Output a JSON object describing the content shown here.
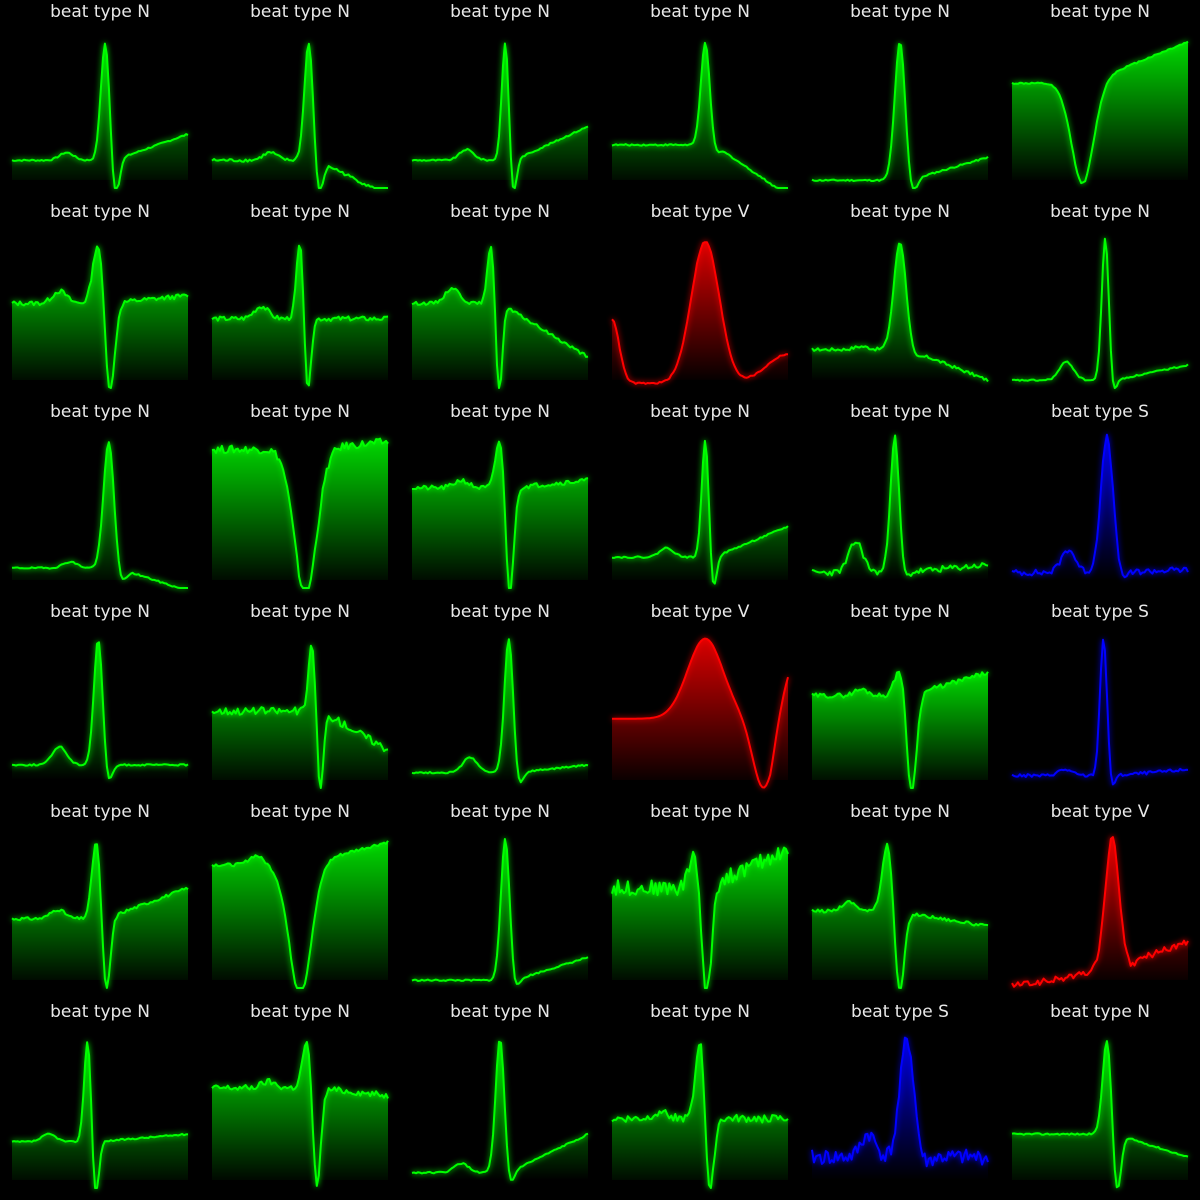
{
  "colors": {
    "N": "#00ff00",
    "V": "#ff0000",
    "S": "#0000ff",
    "background": "#000000",
    "title": "#e8e8e8"
  },
  "title_prefix": "beat type",
  "chart_data": [
    {
      "type": "line",
      "title": "beat type N",
      "beat": "N",
      "shape": {
        "baseline": 0.18,
        "peak": 0.95,
        "peak_pos": 0.53,
        "peak_width": 0.025,
        "s_depth": 0.22,
        "end": 0.35,
        "p_wave": 0.05,
        "noise": 0.005,
        "filled": true
      }
    },
    {
      "type": "line",
      "title": "beat type N",
      "beat": "N",
      "shape": {
        "baseline": 0.18,
        "peak": 0.95,
        "peak_pos": 0.55,
        "peak_width": 0.025,
        "s_depth": 0.2,
        "end": -0.05,
        "p_wave": 0.05,
        "noise": 0.01,
        "filled": true
      }
    },
    {
      "type": "line",
      "title": "beat type N",
      "beat": "N",
      "shape": {
        "baseline": 0.18,
        "peak": 0.95,
        "peak_pos": 0.53,
        "peak_width": 0.02,
        "s_depth": 0.2,
        "end": 0.4,
        "p_wave": 0.07,
        "noise": 0.005,
        "filled": true
      }
    },
    {
      "type": "line",
      "title": "beat type N",
      "beat": "N",
      "shape": {
        "baseline": 0.28,
        "peak": 0.95,
        "peak_pos": 0.53,
        "peak_width": 0.025,
        "s_depth": 0.0,
        "end": -0.05,
        "p_wave": 0.0,
        "noise": 0.005,
        "filled": true
      }
    },
    {
      "type": "line",
      "title": "beat type N",
      "beat": "N",
      "shape": {
        "baseline": 0.05,
        "peak": 0.95,
        "peak_pos": 0.5,
        "peak_width": 0.03,
        "s_depth": 0.06,
        "end": 0.2,
        "p_wave": 0.0,
        "noise": 0.005,
        "filled": true
      }
    },
    {
      "type": "line",
      "title": "beat type N",
      "beat": "N",
      "shape": {
        "baseline": 0.68,
        "peak": 0.74,
        "peak_pos": 0.37,
        "peak_width": 0.04,
        "s_depth": 0.65,
        "end": 0.95,
        "p_wave": 0.0,
        "noise": 0.005,
        "filled": true,
        "inverted": true
      }
    },
    {
      "type": "line",
      "title": "beat type N",
      "beat": "N",
      "shape": {
        "baseline": 0.55,
        "peak": 0.95,
        "peak_pos": 0.49,
        "peak_width": 0.03,
        "s_depth": 0.55,
        "end": 0.6,
        "p_wave": 0.08,
        "noise": 0.015,
        "filled": true
      }
    },
    {
      "type": "line",
      "title": "beat type N",
      "beat": "N",
      "shape": {
        "baseline": 0.45,
        "peak": 0.95,
        "peak_pos": 0.5,
        "peak_width": 0.02,
        "s_depth": 0.45,
        "end": 0.45,
        "p_wave": 0.08,
        "noise": 0.015,
        "filled": true
      }
    },
    {
      "type": "line",
      "title": "beat type N",
      "beat": "N",
      "shape": {
        "baseline": 0.55,
        "peak": 0.95,
        "peak_pos": 0.45,
        "peak_width": 0.02,
        "s_depth": 0.55,
        "end": 0.2,
        "p_wave": 0.1,
        "noise": 0.01,
        "filled": true
      }
    },
    {
      "type": "line",
      "title": "beat type V",
      "beat": "V",
      "shape": {
        "baseline": 0.03,
        "peak": 0.95,
        "peak_pos": 0.53,
        "peak_width": 0.08,
        "s_depth": 0.0,
        "end": 0.22,
        "p_wave": 0.0,
        "noise": 0.005,
        "filled": true,
        "start": 0.45,
        "wide": true
      }
    },
    {
      "type": "line",
      "title": "beat type N",
      "beat": "N",
      "shape": {
        "baseline": 0.25,
        "peak": 0.95,
        "peak_pos": 0.5,
        "peak_width": 0.035,
        "s_depth": 0.0,
        "end": 0.05,
        "p_wave": 0.02,
        "noise": 0.01,
        "filled": true
      }
    },
    {
      "type": "line",
      "title": "beat type N",
      "beat": "N",
      "shape": {
        "baseline": 0.05,
        "peak": 0.98,
        "peak_pos": 0.53,
        "peak_width": 0.02,
        "s_depth": 0.04,
        "end": 0.15,
        "p_wave": 0.12,
        "noise": 0.005,
        "filled": false
      }
    },
    {
      "type": "line",
      "title": "beat type N",
      "beat": "N",
      "shape": {
        "baseline": 0.13,
        "peak": 0.95,
        "peak_pos": 0.55,
        "peak_width": 0.03,
        "s_depth": 0.05,
        "end": -0.02,
        "p_wave": 0.04,
        "noise": 0.005,
        "filled": true
      }
    },
    {
      "type": "line",
      "title": "beat type N",
      "beat": "N",
      "shape": {
        "baseline": 0.9,
        "peak": 0.95,
        "peak_pos": 0.5,
        "peak_width": 0.04,
        "s_depth": 0.95,
        "end": 0.95,
        "p_wave": 0.0,
        "noise": 0.025,
        "filled": true,
        "inverted": true
      }
    },
    {
      "type": "line",
      "title": "beat type N",
      "beat": "N",
      "shape": {
        "baseline": 0.65,
        "peak": 0.98,
        "peak_pos": 0.5,
        "peak_width": 0.025,
        "s_depth": 0.65,
        "end": 0.7,
        "p_wave": 0.05,
        "noise": 0.015,
        "filled": true
      }
    },
    {
      "type": "line",
      "title": "beat type N",
      "beat": "N",
      "shape": {
        "baseline": 0.2,
        "peak": 0.97,
        "peak_pos": 0.53,
        "peak_width": 0.02,
        "s_depth": 0.18,
        "end": 0.4,
        "p_wave": 0.06,
        "noise": 0.005,
        "filled": true
      }
    },
    {
      "type": "line",
      "title": "beat type N",
      "beat": "N",
      "shape": {
        "baseline": 0.1,
        "peak": 0.98,
        "peak_pos": 0.47,
        "peak_width": 0.025,
        "s_depth": 0.0,
        "end": 0.15,
        "p_wave": 0.2,
        "noise": 0.02,
        "filled": true
      }
    },
    {
      "type": "line",
      "title": "beat type S",
      "beat": "S",
      "shape": {
        "baseline": 0.1,
        "peak": 0.98,
        "peak_pos": 0.54,
        "peak_width": 0.035,
        "s_depth": 0.0,
        "end": 0.12,
        "p_wave": 0.15,
        "noise": 0.02,
        "filled": true
      }
    },
    {
      "type": "line",
      "title": "beat type N",
      "beat": "N",
      "shape": {
        "baseline": 0.15,
        "peak": 0.97,
        "peak_pos": 0.49,
        "peak_width": 0.025,
        "s_depth": 0.08,
        "end": 0.15,
        "p_wave": 0.12,
        "noise": 0.005,
        "filled": true
      }
    },
    {
      "type": "line",
      "title": "beat type N",
      "beat": "N",
      "shape": {
        "baseline": 0.5,
        "peak": 0.95,
        "peak_pos": 0.57,
        "peak_width": 0.02,
        "s_depth": 0.5,
        "end": 0.25,
        "p_wave": 0.0,
        "noise": 0.025,
        "filled": true
      }
    },
    {
      "type": "line",
      "title": "beat type N",
      "beat": "N",
      "shape": {
        "baseline": 0.1,
        "peak": 0.97,
        "peak_pos": 0.55,
        "peak_width": 0.025,
        "s_depth": 0.05,
        "end": 0.15,
        "p_wave": 0.1,
        "noise": 0.005,
        "filled": true
      }
    },
    {
      "type": "line",
      "title": "beat type V",
      "beat": "V",
      "shape": {
        "baseline": 0.45,
        "peak": 0.97,
        "peak_pos": 0.53,
        "peak_width": 0.1,
        "s_depth": 0.0,
        "end": 0.45,
        "p_wave": 0.0,
        "noise": 0.0,
        "filled": true,
        "wide": true
      }
    },
    {
      "type": "line",
      "title": "beat type N",
      "beat": "N",
      "shape": {
        "baseline": 0.6,
        "peak": 0.78,
        "peak_pos": 0.5,
        "peak_width": 0.03,
        "s_depth": 0.6,
        "end": 0.75,
        "p_wave": 0.04,
        "noise": 0.015,
        "filled": true
      }
    },
    {
      "type": "line",
      "title": "beat type S",
      "beat": "S",
      "shape": {
        "baseline": 0.08,
        "peak": 0.98,
        "peak_pos": 0.52,
        "peak_width": 0.02,
        "s_depth": 0.04,
        "end": 0.12,
        "p_wave": 0.04,
        "noise": 0.01,
        "filled": false
      }
    },
    {
      "type": "line",
      "title": "beat type N",
      "beat": "N",
      "shape": {
        "baseline": 0.45,
        "peak": 0.97,
        "peak_pos": 0.48,
        "peak_width": 0.025,
        "s_depth": 0.45,
        "end": 0.65,
        "p_wave": 0.06,
        "noise": 0.01,
        "filled": true
      }
    },
    {
      "type": "line",
      "title": "beat type N",
      "beat": "N",
      "shape": {
        "baseline": 0.8,
        "peak": 0.9,
        "peak_pos": 0.47,
        "peak_width": 0.04,
        "s_depth": 0.85,
        "end": 0.95,
        "p_wave": 0.06,
        "noise": 0.01,
        "filled": true,
        "inverted": true
      }
    },
    {
      "type": "line",
      "title": "beat type N",
      "beat": "N",
      "shape": {
        "baseline": 0.05,
        "peak": 0.97,
        "peak_pos": 0.53,
        "peak_width": 0.025,
        "s_depth": 0.02,
        "end": 0.2,
        "p_wave": 0.0,
        "noise": 0.005,
        "filled": true
      }
    },
    {
      "type": "line",
      "title": "beat type N",
      "beat": "N",
      "shape": {
        "baseline": 0.65,
        "peak": 0.9,
        "peak_pos": 0.47,
        "peak_width": 0.03,
        "s_depth": 0.7,
        "end": 0.9,
        "p_wave": 0.0,
        "noise": 0.05,
        "filled": true
      }
    },
    {
      "type": "line",
      "title": "beat type N",
      "beat": "N",
      "shape": {
        "baseline": 0.5,
        "peak": 0.95,
        "peak_pos": 0.43,
        "peak_width": 0.03,
        "s_depth": 0.5,
        "end": 0.4,
        "p_wave": 0.06,
        "noise": 0.01,
        "filled": true
      }
    },
    {
      "type": "line",
      "title": "beat type V",
      "beat": "V",
      "shape": {
        "baseline": 0.15,
        "peak": 0.97,
        "peak_pos": 0.57,
        "peak_width": 0.04,
        "s_depth": 0.0,
        "end": 0.3,
        "p_wave": 0.0,
        "noise": 0.02,
        "filled": true,
        "start": 0.02
      }
    },
    {
      "type": "line",
      "title": "beat type N",
      "beat": "N",
      "shape": {
        "baseline": 0.3,
        "peak": 0.97,
        "peak_pos": 0.43,
        "peak_width": 0.02,
        "s_depth": 0.35,
        "end": 0.35,
        "p_wave": 0.05,
        "noise": 0.005,
        "filled": true
      }
    },
    {
      "type": "line",
      "title": "beat type N",
      "beat": "N",
      "shape": {
        "baseline": 0.65,
        "peak": 0.97,
        "peak_pos": 0.54,
        "peak_width": 0.025,
        "s_depth": 0.6,
        "end": 0.6,
        "p_wave": 0.04,
        "noise": 0.02,
        "filled": true
      }
    },
    {
      "type": "line",
      "title": "beat type N",
      "beat": "N",
      "shape": {
        "baseline": 0.1,
        "peak": 0.97,
        "peak_pos": 0.5,
        "peak_width": 0.025,
        "s_depth": 0.05,
        "end": 0.35,
        "p_wave": 0.06,
        "noise": 0.005,
        "filled": true
      }
    },
    {
      "type": "line",
      "title": "beat type N",
      "beat": "N",
      "shape": {
        "baseline": 0.45,
        "peak": 0.97,
        "peak_pos": 0.5,
        "peak_width": 0.025,
        "s_depth": 0.45,
        "end": 0.45,
        "p_wave": 0.05,
        "noise": 0.025,
        "filled": true
      }
    },
    {
      "type": "line",
      "title": "beat type S",
      "beat": "S",
      "shape": {
        "baseline": 0.2,
        "peak": 0.97,
        "peak_pos": 0.54,
        "peak_width": 0.04,
        "s_depth": 0.0,
        "end": 0.2,
        "p_wave": 0.15,
        "noise": 0.05,
        "filled": true
      }
    },
    {
      "type": "line",
      "title": "beat type N",
      "beat": "N",
      "shape": {
        "baseline": 0.35,
        "peak": 0.97,
        "peak_pos": 0.54,
        "peak_width": 0.025,
        "s_depth": 0.35,
        "end": 0.2,
        "p_wave": 0.0,
        "noise": 0.005,
        "filled": true
      }
    }
  ]
}
